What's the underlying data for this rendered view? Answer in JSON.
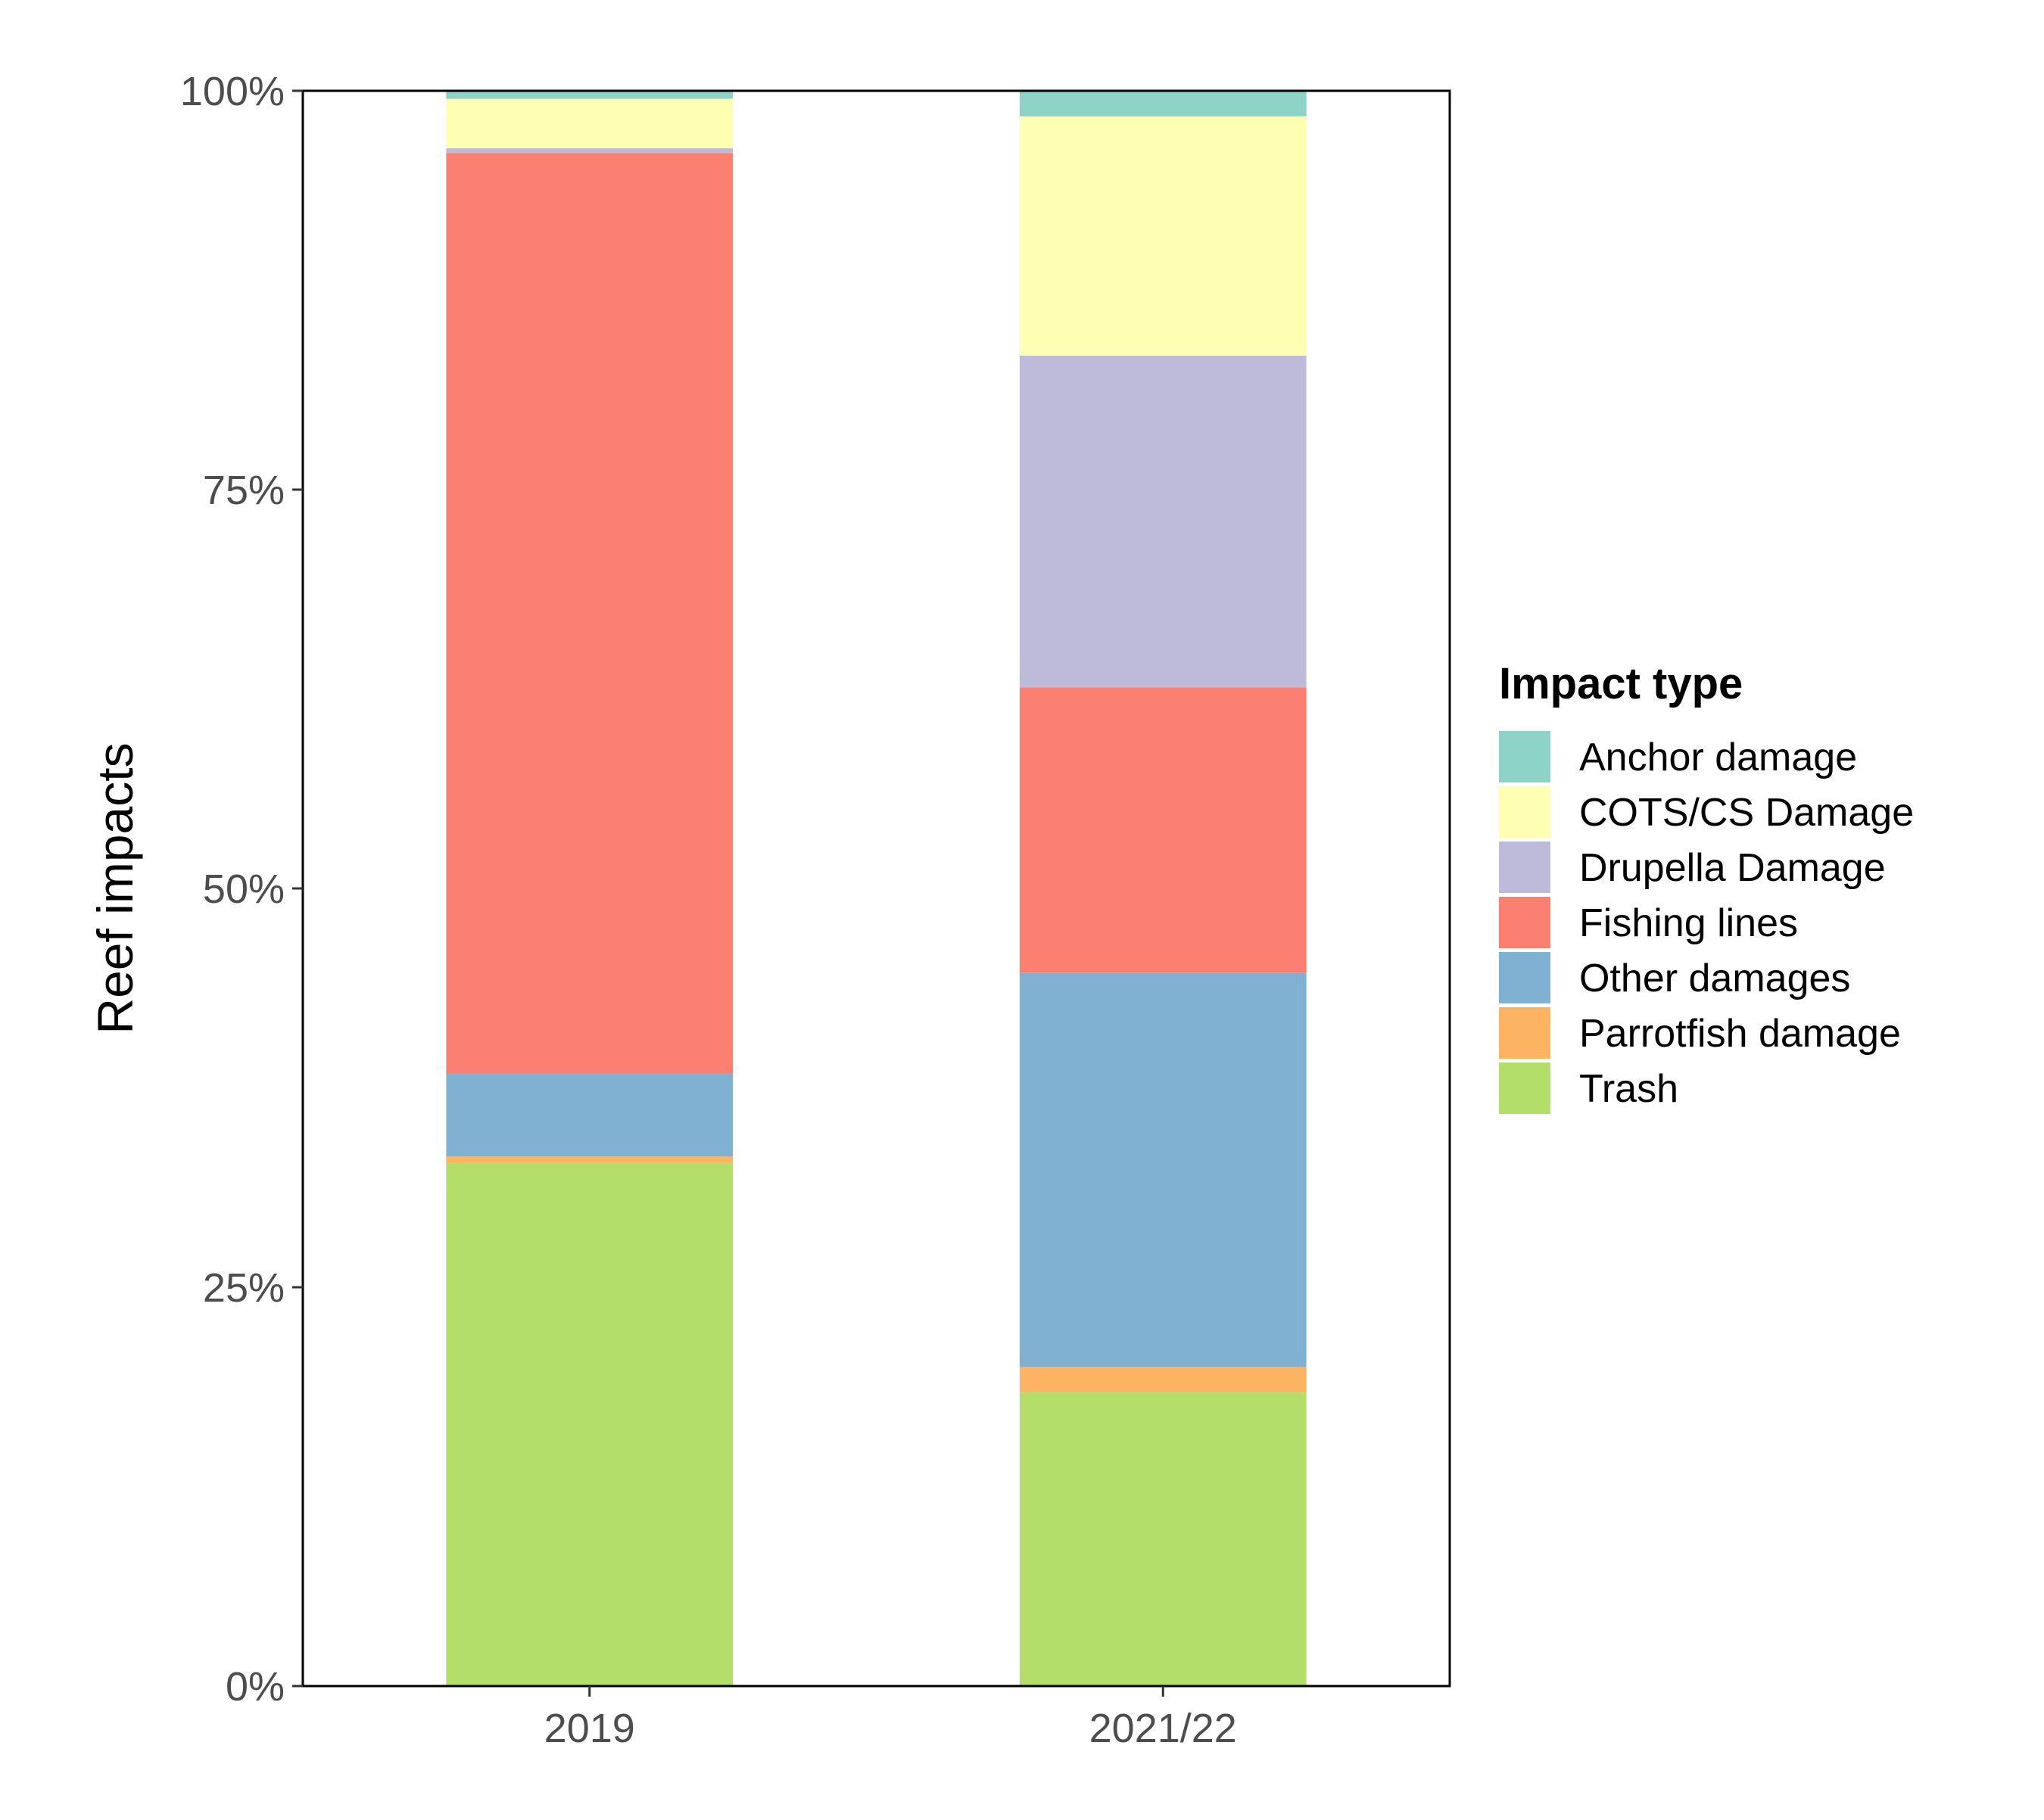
{
  "chart_data": {
    "type": "bar",
    "stacked": true,
    "normalized": true,
    "categories": [
      "2019",
      "2021/22"
    ],
    "ylabel": "Reef impacts",
    "xlabel": "",
    "ylim": [
      0,
      1
    ],
    "yticks": [
      0,
      0.25,
      0.5,
      0.75,
      1
    ],
    "ytick_labels": [
      "0%",
      "25%",
      "50%",
      "75%",
      "100%"
    ],
    "grid": false,
    "legend": {
      "title": "Impact type",
      "position": "right"
    },
    "series": [
      {
        "name": "Trash",
        "color": "#b3de69",
        "values": [
          0.328,
          0.184
        ]
      },
      {
        "name": "Parrotfish damage",
        "color": "#fdb462",
        "values": [
          0.004,
          0.016
        ]
      },
      {
        "name": "Other damages",
        "color": "#80b1d3",
        "values": [
          0.052,
          0.247
        ]
      },
      {
        "name": "Fishing lines",
        "color": "#fb8072",
        "values": [
          0.577,
          0.179
        ]
      },
      {
        "name": "Drupella Damage",
        "color": "#bebada",
        "values": [
          0.003,
          0.208
        ]
      },
      {
        "name": "COTS/CS Damage",
        "color": "#ffffb3",
        "values": [
          0.031,
          0.15
        ]
      },
      {
        "name": "Anchor damage",
        "color": "#8dd3c7",
        "values": [
          0.005,
          0.016
        ]
      }
    ]
  }
}
